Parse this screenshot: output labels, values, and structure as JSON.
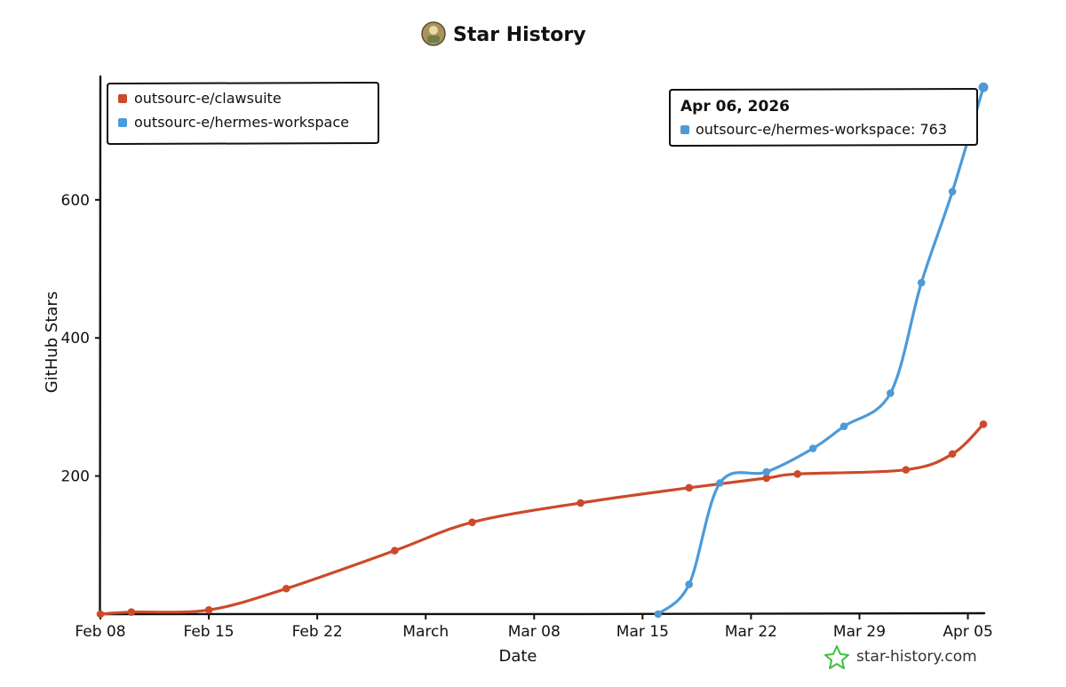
{
  "header": {
    "title": "Star History"
  },
  "chart_data": {
    "type": "line",
    "title": "Star History",
    "xlabel": "Date",
    "ylabel": "GitHub Stars",
    "x_ticks": [
      "Feb 08",
      "Feb 15",
      "Feb 22",
      "March",
      "Mar 08",
      "Mar 15",
      "Mar 22",
      "Mar 29",
      "Apr 05"
    ],
    "y_ticks": [
      200,
      400,
      600
    ],
    "x_range": [
      "2026-02-08",
      "2026-04-06"
    ],
    "ylim": [
      0,
      780
    ],
    "legend_position": "top-left",
    "series": [
      {
        "name": "outsourc-e/clawsuite",
        "color": "#cc4a2a",
        "points": [
          {
            "x": "2026-02-08",
            "y": 0
          },
          {
            "x": "2026-02-10",
            "y": 3
          },
          {
            "x": "2026-02-15",
            "y": 6
          },
          {
            "x": "2026-02-20",
            "y": 37
          },
          {
            "x": "2026-02-27",
            "y": 92
          },
          {
            "x": "2026-03-04",
            "y": 133
          },
          {
            "x": "2026-03-11",
            "y": 161
          },
          {
            "x": "2026-03-18",
            "y": 183
          },
          {
            "x": "2026-03-23",
            "y": 197
          },
          {
            "x": "2026-03-25",
            "y": 203
          },
          {
            "x": "2026-04-01",
            "y": 209
          },
          {
            "x": "2026-04-04",
            "y": 232
          },
          {
            "x": "2026-04-06",
            "y": 275
          }
        ]
      },
      {
        "name": "outsourc-e/hermes-workspace",
        "color": "#4d9ad8",
        "points": [
          {
            "x": "2026-03-16",
            "y": 0
          },
          {
            "x": "2026-03-18",
            "y": 43
          },
          {
            "x": "2026-03-20",
            "y": 190
          },
          {
            "x": "2026-03-23",
            "y": 206
          },
          {
            "x": "2026-03-26",
            "y": 240
          },
          {
            "x": "2026-03-28",
            "y": 272
          },
          {
            "x": "2026-03-31",
            "y": 320
          },
          {
            "x": "2026-04-02",
            "y": 480
          },
          {
            "x": "2026-04-04",
            "y": 612
          },
          {
            "x": "2026-04-06",
            "y": 763
          }
        ]
      }
    ],
    "tooltip": {
      "date": "Apr 06, 2026",
      "series": "outsourc-e/hermes-workspace",
      "label": "outsourc-e/hermes-workspace: 763",
      "color": "#4d9ad8"
    }
  },
  "watermark": {
    "text": "star-history.com",
    "icon": "star-icon",
    "color": "#3fbf3f"
  }
}
